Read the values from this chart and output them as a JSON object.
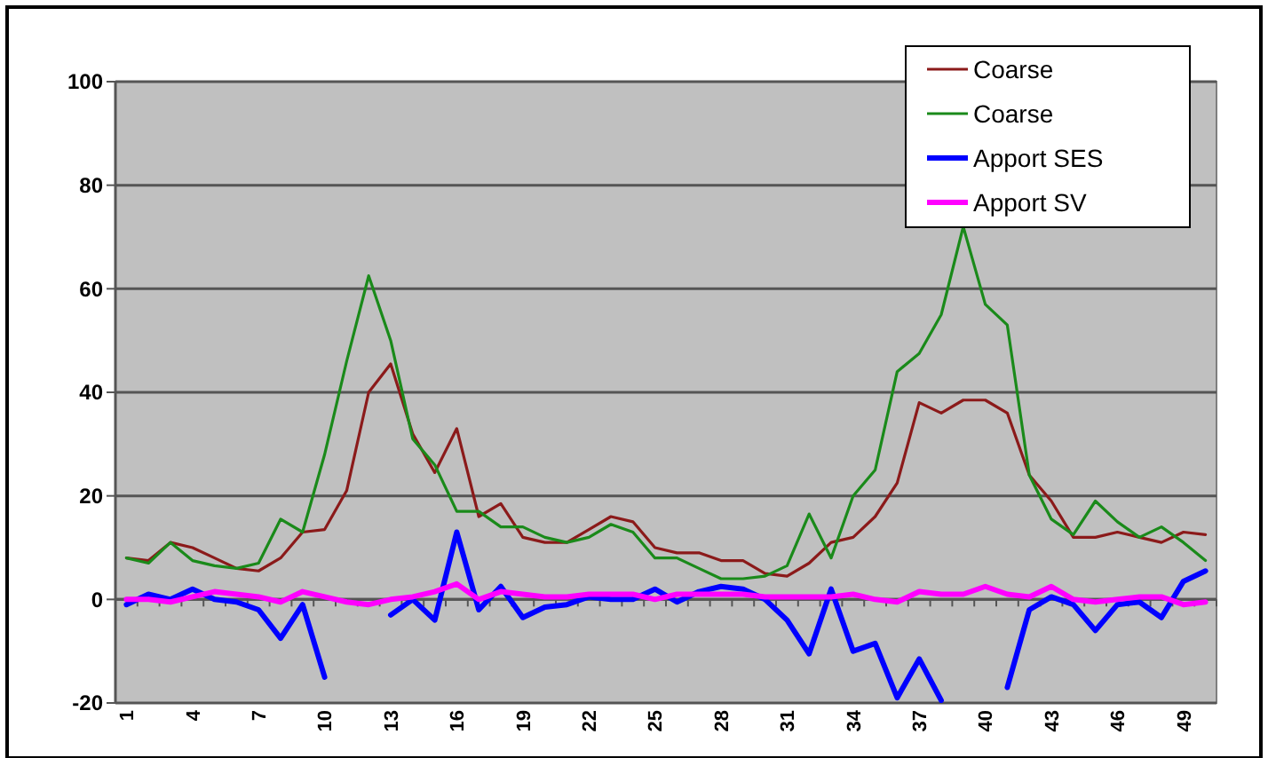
{
  "chart_data": {
    "type": "line",
    "categories": [
      "1",
      null,
      null,
      "4",
      null,
      null,
      "7",
      null,
      null,
      "10",
      null,
      null,
      "13",
      null,
      null,
      "16",
      null,
      null,
      "19",
      null,
      null,
      "22",
      null,
      null,
      "25",
      null,
      null,
      "28",
      null,
      null,
      "31",
      null,
      null,
      "34",
      null,
      null,
      "37",
      null,
      null,
      "40",
      null,
      null,
      "43",
      null,
      null,
      "46",
      null,
      null,
      "49",
      null
    ],
    "ylim": [
      -20,
      100
    ],
    "yticks": [
      -20,
      0,
      20,
      40,
      60,
      80,
      100
    ],
    "grid": "y",
    "legend": "top right",
    "marker": "none",
    "line_style": "solid",
    "series": [
      {
        "name": "Coarse",
        "color": "#8b1a1a",
        "values": [
          8,
          7.5,
          11,
          10,
          8,
          6,
          5.5,
          8,
          13,
          13.5,
          21,
          40,
          45.5,
          32,
          24.5,
          33,
          16,
          18.5,
          12,
          11,
          11,
          13.5,
          16,
          15,
          10,
          9,
          9,
          7.5,
          7.5,
          5,
          4.5,
          7,
          11,
          12,
          16,
          22.5,
          38,
          36,
          38.5,
          38.5,
          36,
          24,
          19,
          12,
          12,
          13,
          12,
          11,
          13,
          12.5
        ]
      },
      {
        "name": "Coarse",
        "color": "#1a8a1a",
        "values": [
          8,
          7,
          11,
          7.5,
          6.5,
          6,
          7,
          15.5,
          13,
          28,
          46,
          62.5,
          50,
          31,
          26,
          17,
          17,
          14,
          14,
          12,
          11,
          12,
          14.5,
          13,
          8,
          8,
          6,
          4,
          4,
          4.5,
          6.5,
          16.5,
          8,
          20,
          25,
          44,
          47.5,
          55,
          72,
          57,
          53,
          24,
          15.5,
          12.5,
          19,
          15,
          12,
          14,
          11,
          7.5
        ]
      },
      {
        "name": "Apport SES",
        "color": "#0000ff",
        "values": [
          -1,
          1,
          0,
          2,
          0,
          -0.5,
          -2,
          -7.5,
          -1,
          -15,
          null,
          null,
          -3,
          0,
          -4,
          13,
          -2,
          2.5,
          -3.5,
          -1.5,
          -1,
          0.5,
          0,
          0,
          2,
          -0.5,
          1.5,
          2.5,
          2,
          0,
          -4,
          -10.5,
          2,
          -10,
          -8.5,
          -19,
          -11.5,
          -19.5,
          null,
          null,
          -17,
          -2,
          0.5,
          -1,
          -6,
          -1,
          -0.5,
          -3.5,
          3.5,
          5.5
        ]
      },
      {
        "name": "Apport SV",
        "color": "#ff00ff",
        "values": [
          0,
          0,
          -0.5,
          0.5,
          1.5,
          1,
          0.5,
          -0.5,
          1.5,
          0.5,
          -0.5,
          -1,
          0,
          0.5,
          1.5,
          3,
          0,
          1.5,
          1,
          0.5,
          0.5,
          1,
          1,
          1,
          0,
          1,
          1,
          1,
          1,
          0.5,
          0.5,
          0.5,
          0.5,
          1,
          0,
          -0.5,
          1.5,
          1,
          1,
          2.5,
          1,
          0.5,
          2.5,
          0,
          -0.5,
          0,
          0.5,
          0.5,
          -1,
          -0.5
        ]
      }
    ]
  }
}
